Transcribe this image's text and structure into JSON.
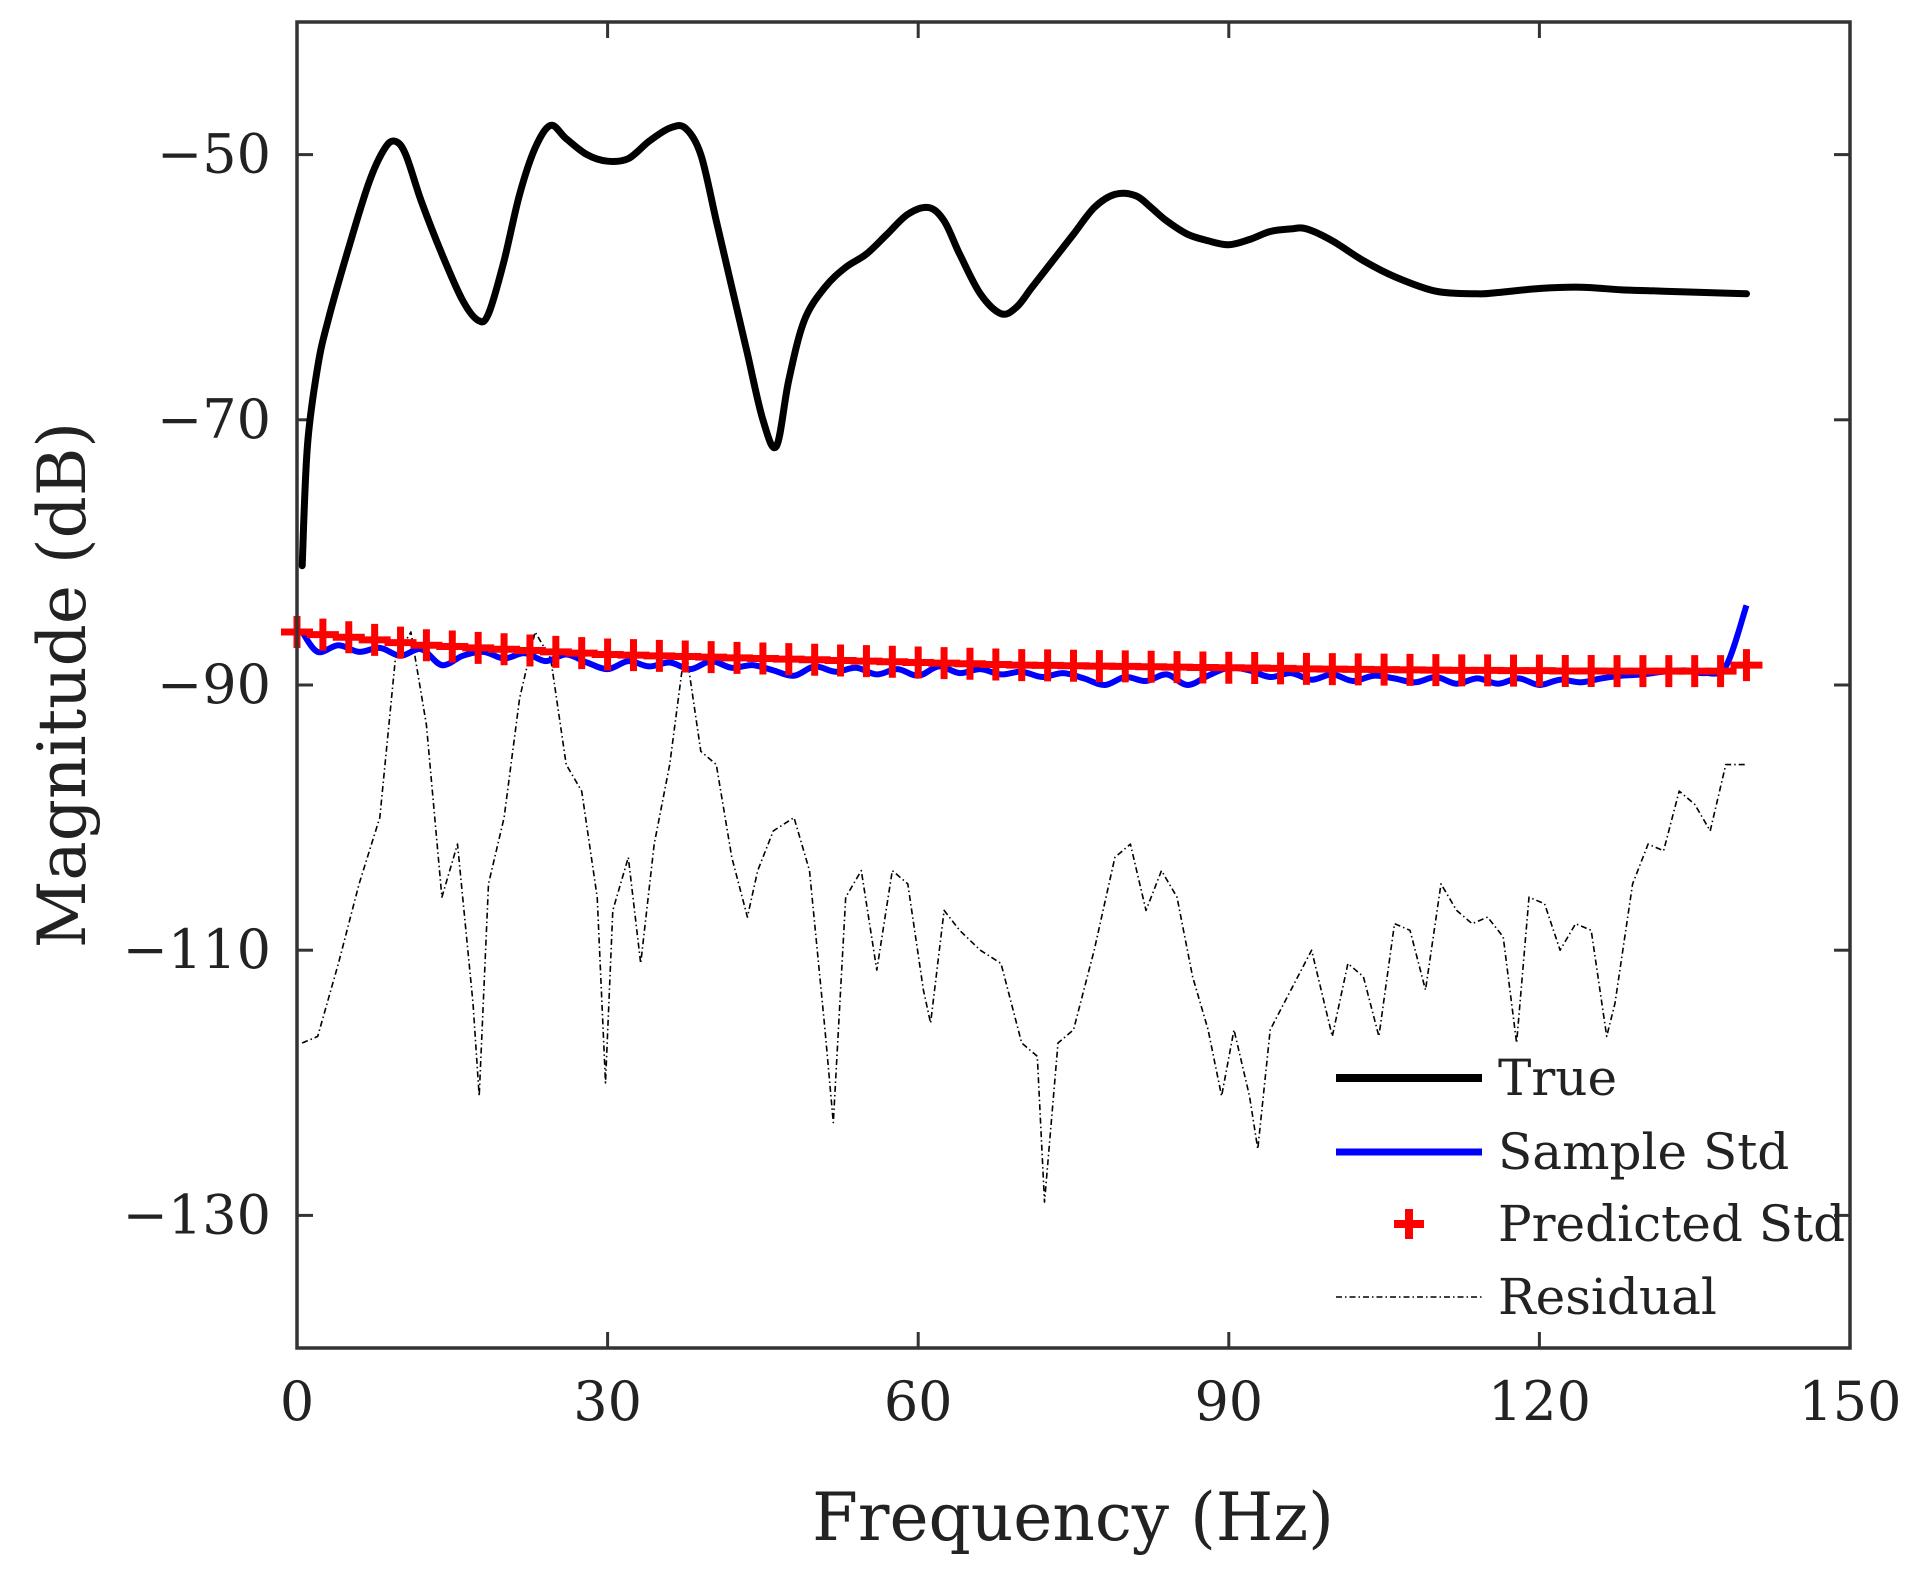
{
  "chart_data": {
    "type": "line",
    "xlabel": "Frequency (Hz)",
    "ylabel": "Magnitude (dB)",
    "xlim": [
      0,
      150
    ],
    "ylim": [
      -140,
      -40
    ],
    "xticks": [
      0,
      30,
      60,
      90,
      120,
      150
    ],
    "yticks": [
      -50,
      -70,
      -90,
      -110,
      -130
    ],
    "xtick_labels": [
      "0",
      "30",
      "60",
      "90",
      "120",
      "150"
    ],
    "ytick_labels": [
      "−50",
      "−70",
      "−90",
      "−110",
      "−130"
    ],
    "grid": false,
    "legend_position": "bottom-right",
    "series": [
      {
        "name": "True",
        "style": "solid-thick",
        "color": "#000000",
        "x": [
          0.5,
          1,
          2,
          3,
          5,
          7,
          8.5,
          9.5,
          10.5,
          12,
          14,
          16,
          17.5,
          18.5,
          20,
          21.5,
          23,
          24.5,
          26,
          28,
          30,
          32,
          34,
          36,
          37.5,
          39,
          40.5,
          42,
          43.5,
          45,
          46.3,
          47.5,
          49,
          51,
          53,
          55,
          57,
          59,
          61,
          62.5,
          64,
          66,
          68,
          69.5,
          71,
          73,
          75,
          77,
          79,
          81,
          82.5,
          84,
          86,
          88,
          90,
          92,
          94,
          96,
          97.5,
          100,
          103,
          106,
          110,
          114,
          116,
          120,
          124,
          128,
          132,
          136,
          140
        ],
        "y": [
          -81,
          -72,
          -66,
          -62.5,
          -57,
          -52,
          -49.5,
          -49,
          -50,
          -53.5,
          -57.5,
          -61,
          -62.5,
          -62,
          -58,
          -53,
          -49.5,
          -47.8,
          -48.8,
          -50,
          -50.5,
          -50.3,
          -49,
          -48,
          -48,
          -50,
          -55,
          -60,
          -65,
          -70,
          -72,
          -67,
          -62.5,
          -60,
          -58.5,
          -57.5,
          -56,
          -54.5,
          -54,
          -55,
          -57.5,
          -60.5,
          -62,
          -61.5,
          -60,
          -58,
          -56,
          -54,
          -53,
          -53.1,
          -54,
          -55,
          -56,
          -56.5,
          -56.8,
          -56.4,
          -55.8,
          -55.6,
          -55.6,
          -56.5,
          -58,
          -59.2,
          -60.3,
          -60.5,
          -60.4,
          -60.1,
          -60,
          -60.2,
          -60.3,
          -60.4,
          -60.5
        ]
      },
      {
        "name": "Sample Std",
        "style": "solid",
        "color": "#0000ff",
        "x": [
          0.5,
          2,
          4,
          6,
          8,
          10,
          12,
          14,
          16,
          18,
          20,
          22,
          24,
          26,
          28,
          30,
          32,
          34,
          36,
          38,
          40,
          42,
          44,
          46,
          48,
          50,
          52,
          54,
          56,
          58,
          60,
          62,
          64,
          66,
          68,
          70,
          72,
          74,
          76,
          78,
          80,
          82,
          84,
          86,
          88,
          90,
          92,
          94,
          96,
          98,
          100,
          102,
          104,
          106,
          108,
          110,
          112,
          114,
          116,
          118,
          120,
          122,
          124,
          126,
          128,
          130,
          132,
          134,
          136,
          138,
          140
        ],
        "y": [
          -86,
          -87.5,
          -87,
          -87.5,
          -87.2,
          -87.8,
          -87.3,
          -88.5,
          -87.8,
          -87.5,
          -88,
          -87.6,
          -88.2,
          -87.7,
          -88.3,
          -88.8,
          -88.2,
          -88.6,
          -88.3,
          -88.8,
          -88.2,
          -88.7,
          -88.5,
          -88.9,
          -89.3,
          -88.6,
          -89,
          -88.7,
          -89.2,
          -88.8,
          -89.3,
          -88.6,
          -89.1,
          -88.8,
          -89.2,
          -89,
          -89.4,
          -89.1,
          -89.5,
          -90,
          -89.4,
          -89.7,
          -89.2,
          -90,
          -89.3,
          -88.7,
          -88.9,
          -89.4,
          -89.1,
          -89.6,
          -89.2,
          -89.7,
          -89.3,
          -89.5,
          -89.8,
          -89.4,
          -89.9,
          -89.5,
          -89.9,
          -89.5,
          -90,
          -89.6,
          -89.8,
          -89.5,
          -89.3,
          -89.2,
          -89,
          -88.9,
          -89.1,
          -88.6,
          -84
        ]
      },
      {
        "name": "Predicted Std",
        "style": "plus-marker",
        "color": "#ff0000",
        "x": [
          0,
          2.5,
          5,
          7.5,
          10,
          12.5,
          15,
          17.5,
          20,
          22.5,
          25,
          27.5,
          30,
          32.5,
          35,
          37.5,
          40,
          42.5,
          45,
          47.5,
          50,
          52.5,
          55,
          57.5,
          60,
          62.5,
          65,
          67.5,
          70,
          72.5,
          75,
          77.5,
          80,
          82.5,
          85,
          87.5,
          90,
          92.5,
          95,
          97.5,
          100,
          102.5,
          105,
          107.5,
          110,
          112.5,
          115,
          117.5,
          120,
          122.5,
          125,
          127.5,
          130,
          132.5,
          135,
          137.5,
          140
        ],
        "y": [
          -86,
          -86.2,
          -86.4,
          -86.6,
          -86.8,
          -87,
          -87.1,
          -87.2,
          -87.3,
          -87.4,
          -87.5,
          -87.6,
          -87.7,
          -87.75,
          -87.8,
          -87.85,
          -87.9,
          -87.95,
          -88,
          -88.05,
          -88.1,
          -88.15,
          -88.2,
          -88.25,
          -88.3,
          -88.35,
          -88.4,
          -88.45,
          -88.5,
          -88.52,
          -88.55,
          -88.58,
          -88.6,
          -88.62,
          -88.65,
          -88.68,
          -88.7,
          -88.72,
          -88.75,
          -88.78,
          -88.8,
          -88.82,
          -88.84,
          -88.86,
          -88.88,
          -88.9,
          -88.9,
          -88.92,
          -88.92,
          -88.94,
          -88.94,
          -88.95,
          -88.95,
          -88.95,
          -88.95,
          -88.95,
          -88.5
        ]
      },
      {
        "name": "Residual",
        "style": "dash-dot-thin",
        "color": "#000000",
        "x": [
          0.5,
          2,
          4,
          6,
          8,
          9.5,
          11,
          12.5,
          14,
          15.5,
          17,
          17.6,
          18.5,
          20,
          21.5,
          23,
          24.5,
          26,
          27.5,
          29,
          29.8,
          30.5,
          32,
          33.2,
          34.5,
          36,
          37.5,
          39,
          40.5,
          42,
          43.5,
          44.5,
          46,
          48,
          49.5,
          51,
          51.8,
          53,
          54.5,
          56,
          57.5,
          59,
          60.5,
          61.2,
          62.5,
          64,
          66,
          68,
          70,
          71.5,
          72.2,
          73.5,
          75,
          77,
          79,
          80.5,
          82,
          83.5,
          85,
          86.5,
          88,
          89.3,
          90.5,
          92,
          92.8,
          94,
          96,
          98,
          100,
          101.5,
          103,
          104.5,
          106,
          107.5,
          109,
          110.5,
          112,
          113.5,
          115,
          116.5,
          117.8,
          119,
          120.5,
          122,
          123.5,
          125,
          126.5,
          127.3,
          129,
          130.5,
          132,
          133.5,
          135,
          136.5,
          138,
          140
        ],
        "y": [
          -117,
          -116.5,
          -111,
          -105,
          -100,
          -88,
          -86,
          -93,
          -106,
          -102,
          -114,
          -121,
          -105,
          -100,
          -91,
          -86,
          -88,
          -96,
          -98,
          -106,
          -120,
          -107,
          -103,
          -111,
          -102,
          -96,
          -87,
          -95,
          -96,
          -103,
          -107.5,
          -104,
          -101,
          -100,
          -104,
          -116,
          -123,
          -106,
          -104,
          -111.5,
          -104,
          -105,
          -113,
          -115.5,
          -107,
          -108.5,
          -110,
          -111,
          -117,
          -118,
          -129,
          -117,
          -116,
          -110,
          -103,
          -102,
          -107,
          -104,
          -106,
          -112,
          -116,
          -121,
          -116,
          -121,
          -125,
          -116,
          -113,
          -110,
          -116.5,
          -111,
          -112,
          -116.5,
          -108,
          -108.5,
          -113,
          -105,
          -107,
          -108,
          -107.5,
          -109,
          -117,
          -106,
          -106.5,
          -110,
          -108,
          -108.5,
          -116.5,
          -114,
          -105,
          -102,
          -102.5,
          -98,
          -99,
          -101,
          -96,
          -96
        ]
      }
    ]
  }
}
